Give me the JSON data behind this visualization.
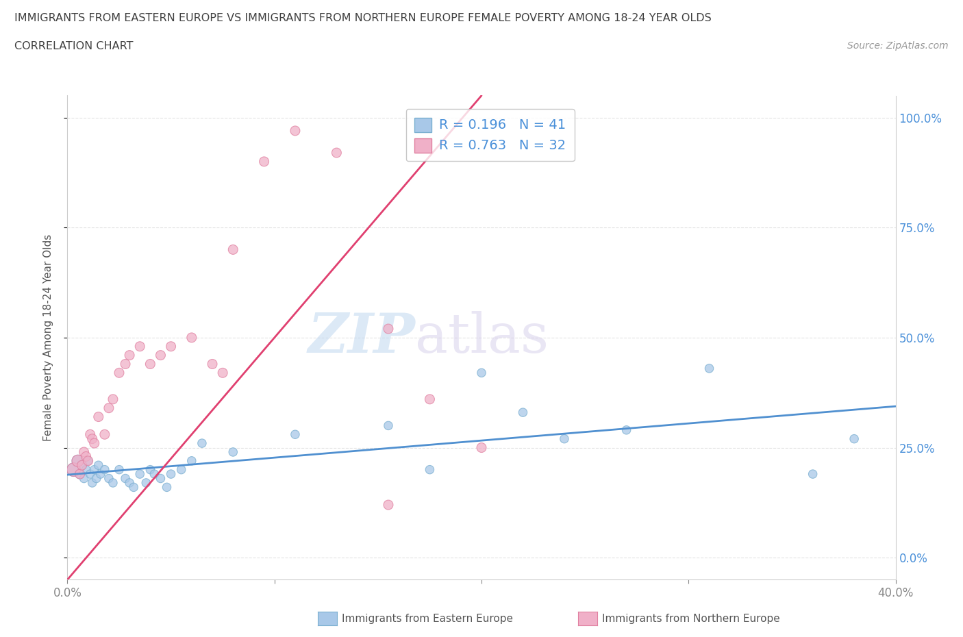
{
  "title_line1": "IMMIGRANTS FROM EASTERN EUROPE VS IMMIGRANTS FROM NORTHERN EUROPE FEMALE POVERTY AMONG 18-24 YEAR OLDS",
  "title_line2": "CORRELATION CHART",
  "source": "Source: ZipAtlas.com",
  "ylabel": "Female Poverty Among 18-24 Year Olds",
  "watermark_zip": "ZIP",
  "watermark_atlas": "atlas",
  "legend_labels": [
    "Immigrants from Eastern Europe",
    "Immigrants from Northern Europe"
  ],
  "r_eastern": 0.196,
  "n_eastern": 41,
  "r_northern": 0.763,
  "n_northern": 32,
  "xlim": [
    0.0,
    0.4
  ],
  "ylim": [
    -0.05,
    1.05
  ],
  "yticks": [
    0.0,
    0.25,
    0.5,
    0.75,
    1.0
  ],
  "ytick_labels_right": [
    "0.0%",
    "25.0%",
    "50.0%",
    "75.0%",
    "100.0%"
  ],
  "xticks": [
    0.0,
    0.1,
    0.2,
    0.3,
    0.4
  ],
  "xtick_labels": [
    "0.0%",
    "",
    "",
    "",
    "40.0%"
  ],
  "color_eastern": "#a8c8e8",
  "color_northern": "#f0b0c8",
  "trendline_eastern": "#5090d0",
  "trendline_northern": "#e04070",
  "background_color": "#ffffff",
  "grid_color": "#e0e0e0",
  "title_color": "#404040",
  "eastern_x": [
    0.003,
    0.005,
    0.006,
    0.007,
    0.008,
    0.009,
    0.01,
    0.011,
    0.012,
    0.013,
    0.014,
    0.015,
    0.016,
    0.018,
    0.02,
    0.022,
    0.025,
    0.028,
    0.03,
    0.032,
    0.035,
    0.038,
    0.04,
    0.042,
    0.045,
    0.048,
    0.05,
    0.055,
    0.06,
    0.065,
    0.08,
    0.11,
    0.155,
    0.175,
    0.2,
    0.22,
    0.24,
    0.27,
    0.31,
    0.36,
    0.38
  ],
  "eastern_y": [
    0.2,
    0.22,
    0.19,
    0.21,
    0.18,
    0.2,
    0.22,
    0.19,
    0.17,
    0.2,
    0.18,
    0.21,
    0.19,
    0.2,
    0.18,
    0.17,
    0.2,
    0.18,
    0.17,
    0.16,
    0.19,
    0.17,
    0.2,
    0.19,
    0.18,
    0.16,
    0.19,
    0.2,
    0.22,
    0.26,
    0.24,
    0.28,
    0.3,
    0.2,
    0.42,
    0.33,
    0.27,
    0.29,
    0.43,
    0.19,
    0.27
  ],
  "eastern_size": [
    200,
    150,
    100,
    100,
    80,
    80,
    80,
    80,
    80,
    80,
    80,
    80,
    80,
    80,
    80,
    80,
    80,
    80,
    80,
    80,
    80,
    80,
    80,
    80,
    80,
    80,
    80,
    80,
    80,
    80,
    80,
    80,
    80,
    80,
    80,
    80,
    80,
    80,
    80,
    80,
    80
  ],
  "northern_x": [
    0.003,
    0.005,
    0.006,
    0.007,
    0.008,
    0.009,
    0.01,
    0.011,
    0.012,
    0.013,
    0.015,
    0.018,
    0.02,
    0.022,
    0.025,
    0.028,
    0.03,
    0.035,
    0.04,
    0.045,
    0.05,
    0.06,
    0.07,
    0.075,
    0.08,
    0.095,
    0.11,
    0.13,
    0.155,
    0.175,
    0.2,
    0.155
  ],
  "northern_y": [
    0.2,
    0.22,
    0.19,
    0.21,
    0.24,
    0.23,
    0.22,
    0.28,
    0.27,
    0.26,
    0.32,
    0.28,
    0.34,
    0.36,
    0.42,
    0.44,
    0.46,
    0.48,
    0.44,
    0.46,
    0.48,
    0.5,
    0.44,
    0.42,
    0.7,
    0.9,
    0.97,
    0.92,
    0.52,
    0.36,
    0.25,
    0.12
  ],
  "northern_size": [
    200,
    150,
    100,
    100,
    100,
    100,
    100,
    100,
    100,
    100,
    100,
    100,
    100,
    100,
    100,
    100,
    100,
    100,
    100,
    100,
    100,
    100,
    100,
    100,
    100,
    100,
    100,
    100,
    100,
    100,
    100,
    100
  ],
  "trendline_e_x0": 0.0,
  "trendline_e_x1": 0.4,
  "trendline_e_y0": 0.175,
  "trendline_e_y1": 0.248,
  "trendline_n_x0": 0.0,
  "trendline_n_x1": 0.2,
  "trendline_n_y0": -0.05,
  "trendline_n_y1": 1.05
}
